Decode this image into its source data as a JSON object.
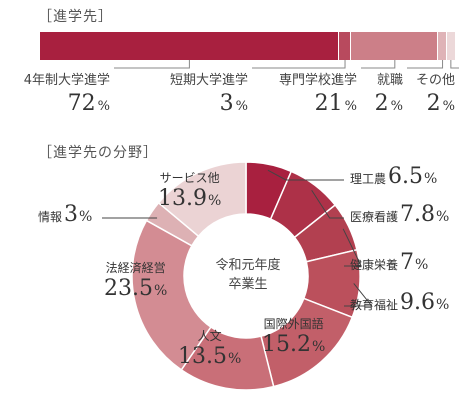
{
  "section_titles": {
    "destination": "［進学先］",
    "field": "［進学先の分野］"
  },
  "chart_data": [
    {
      "type": "bar",
      "stacked": true,
      "orientation": "horizontal",
      "title": "［進学先］",
      "unit": "%",
      "categories": [
        "4年制大学進学",
        "短期大学進学",
        "専門学校進学",
        "就職",
        "その他"
      ],
      "values": [
        72,
        3,
        21,
        2,
        2
      ],
      "colors": [
        "#a8203f",
        "#b84a5e",
        "#cc7f88",
        "#dfb3b7",
        "#ecd8d9"
      ]
    },
    {
      "type": "pie",
      "donut": true,
      "title": "［進学先の分野］",
      "center_label": [
        "令和元年度",
        "卒業生"
      ],
      "unit": "%",
      "categories": [
        "理工農",
        "医療看護",
        "健康栄養",
        "教育福祉",
        "国際外国語",
        "人文",
        "法経済経営",
        "情報",
        "サービス他"
      ],
      "values": [
        6.5,
        7.8,
        7,
        9.6,
        15.2,
        13.5,
        23.5,
        3,
        13.9
      ],
      "colors": [
        "#a8203f",
        "#ad3148",
        "#b24050",
        "#bb505c",
        "#c25f69",
        "#c96f78",
        "#d38c93",
        "#ddb1b4",
        "#ebd3d4"
      ]
    }
  ]
}
